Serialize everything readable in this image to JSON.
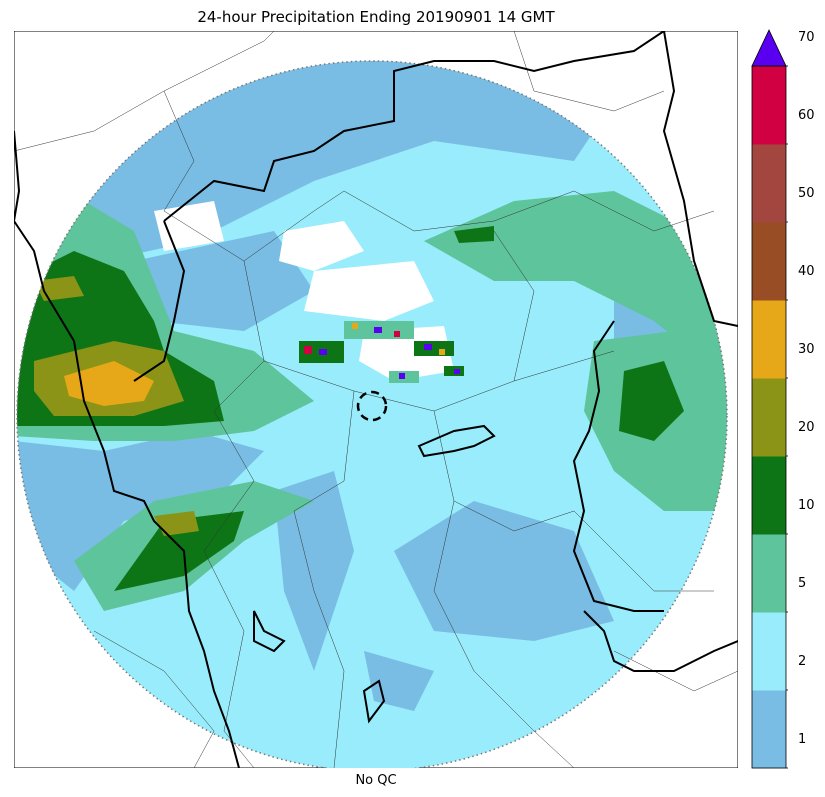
{
  "title": "24-hour Precipitation Ending 20190901 14 GMT",
  "xlabel": "No QC",
  "colorbar": {
    "ticks": [
      "1",
      "2",
      "5",
      "10",
      "20",
      "30",
      "40",
      "50",
      "60",
      "70"
    ],
    "colors": [
      "#79bde4",
      "#98ecfb",
      "#5ec49b",
      "#0e7517",
      "#8b9416",
      "#e6a818",
      "#984d24",
      "#a44640",
      "#d10043"
    ],
    "extend_max_color": "#5a00f0"
  },
  "colors": {
    "background": "#ffffff",
    "outside_range": "#ffffff",
    "borders": "#000000",
    "range_ring": "#777777"
  }
}
